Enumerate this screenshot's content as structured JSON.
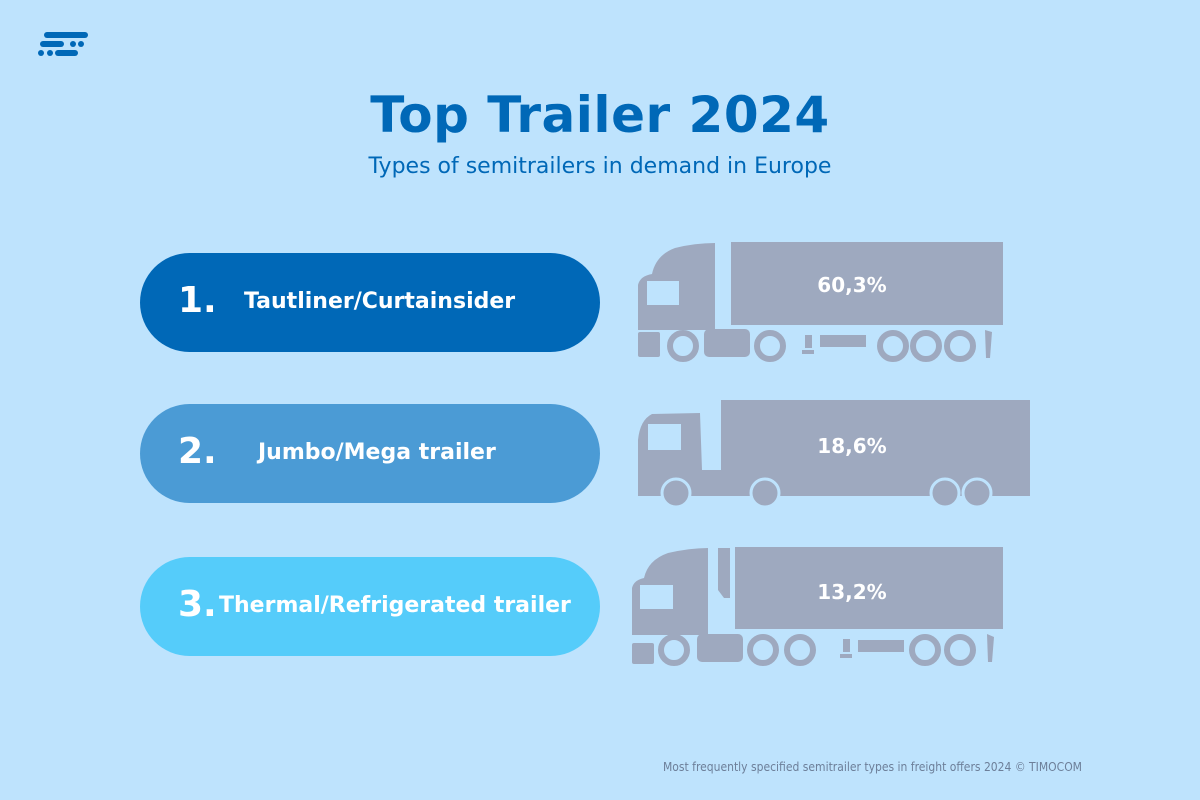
{
  "header": {
    "title": "Top Trailer 2024",
    "subtitle": "Types of semitrailers in demand in Europe"
  },
  "logo": {
    "name": "timocom-logo",
    "color": "#0068b7"
  },
  "items": [
    {
      "rank": "1.",
      "label": "Tautliner/Curtainsider",
      "percent": "60,3%",
      "color": "#0068b7",
      "icon": "curtainsider-truck-icon"
    },
    {
      "rank": "2.",
      "label": "Jumbo/Mega trailer",
      "percent": "18,6%",
      "color": "#4b9bd5",
      "icon": "mega-trailer-truck-icon"
    },
    {
      "rank": "3.",
      "label": "Thermal/Refrigerated trailer",
      "percent": "13,2%",
      "color": "#55ccfa",
      "icon": "refrigerated-truck-icon"
    }
  ],
  "colors": {
    "background": "#bee3fd",
    "truck": "#9ea9bf"
  },
  "footer": {
    "note": "Most frequently specified semitrailer types in freight offers 2024 © TIMOCOM"
  }
}
